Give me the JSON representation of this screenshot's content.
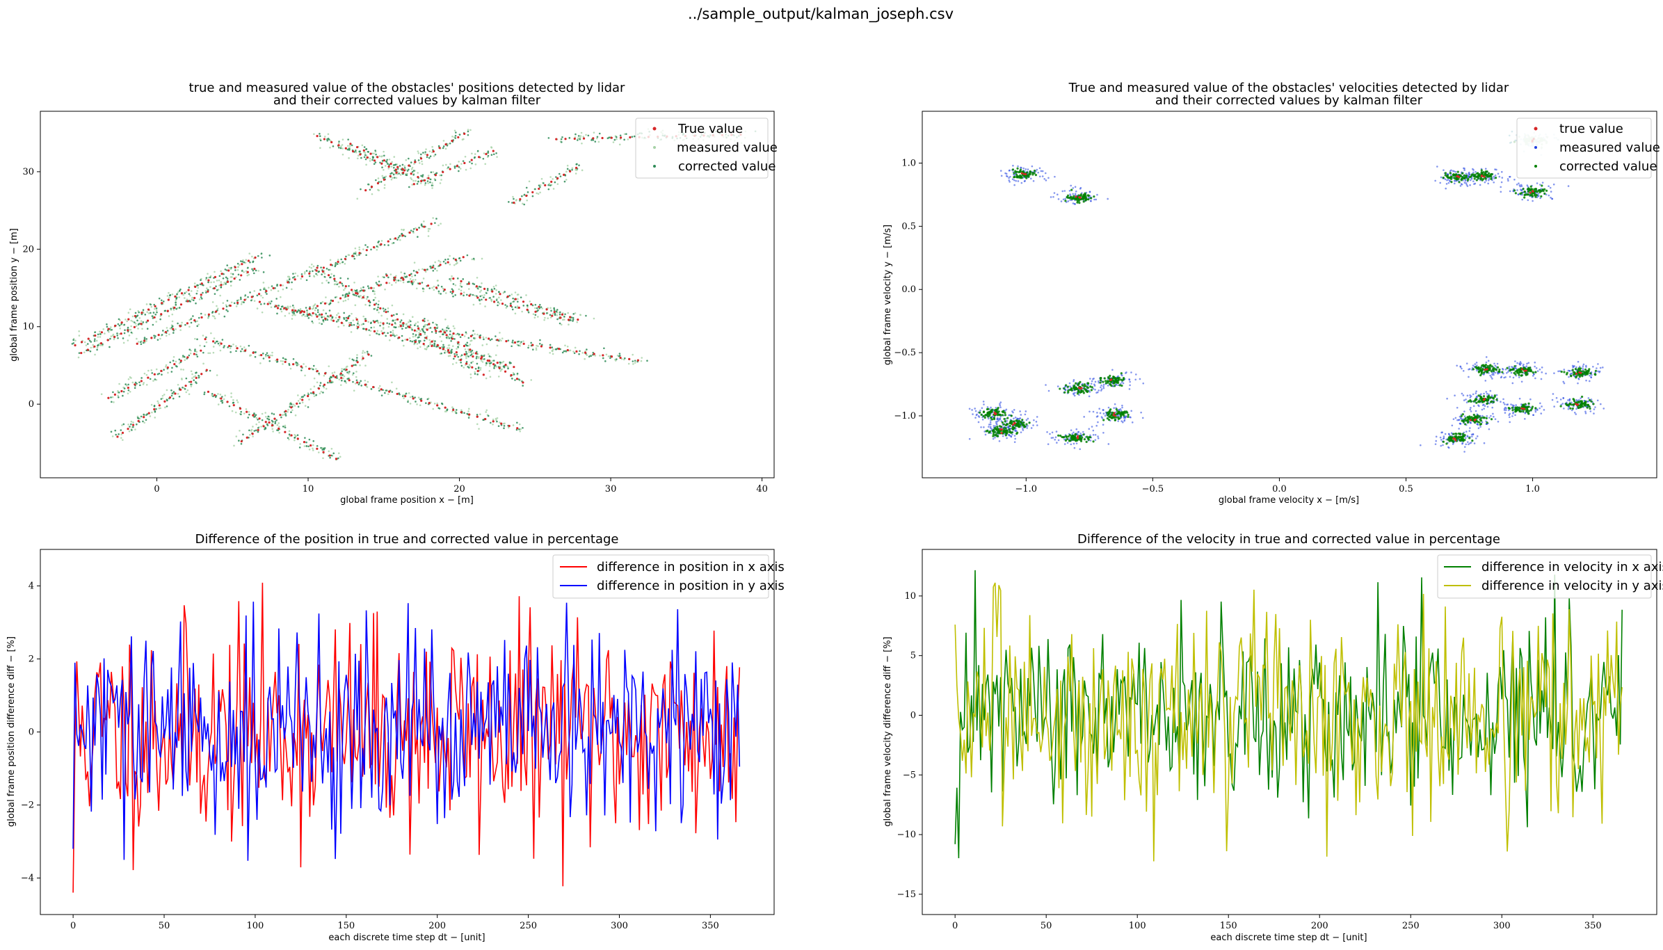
{
  "suptitle": "../sample_output/kalman_joseph.csv",
  "chart_data": [
    {
      "type": "scatter",
      "title": [
        "true and measured value of the obstacles' positions detected by lidar",
        "and their corrected values by kalman filter"
      ],
      "xlabel": "global frame position x − [m]",
      "ylabel": "global frame position y − [m]",
      "xlim": [
        -7.7,
        40.8
      ],
      "ylim": [
        -9.5,
        37.8
      ],
      "xticks": [
        0,
        10,
        20,
        30,
        40
      ],
      "yticks": [
        0,
        10,
        20,
        30
      ],
      "legend_position": "top-right",
      "series": [
        {
          "name": "True value",
          "color": "#d62728"
        },
        {
          "name": "measured value",
          "color": "#a6d2a6"
        },
        {
          "name": "corrected value",
          "color": "#2e8b57"
        }
      ],
      "trajectories": [
        [
          [
            -5.4,
            7.6
          ],
          [
            6.8,
            19.2
          ]
        ],
        [
          [
            -5.0,
            6.6
          ],
          [
            6.6,
            17.6
          ]
        ],
        [
          [
            -1.3,
            7.8
          ],
          [
            18.3,
            23.4
          ]
        ],
        [
          [
            -3.2,
            0.8
          ],
          [
            3.2,
            7.2
          ]
        ],
        [
          [
            -2.6,
            -4.2
          ],
          [
            3.3,
            4.4
          ]
        ],
        [
          [
            3.2,
            8.4
          ],
          [
            24.0,
            -3.2
          ]
        ],
        [
          [
            3.4,
            1.6
          ],
          [
            12.0,
            -7.2
          ]
        ],
        [
          [
            5.6,
            -4.8
          ],
          [
            14.0,
            6.4
          ]
        ],
        [
          [
            6.8,
            13.2
          ],
          [
            23.6,
            4.8
          ]
        ],
        [
          [
            8.0,
            12.4
          ],
          [
            32.0,
            5.6
          ]
        ],
        [
          [
            9.6,
            12.0
          ],
          [
            20.6,
            19.2
          ]
        ],
        [
          [
            10.6,
            17.6
          ],
          [
            21.6,
            3.8
          ]
        ],
        [
          [
            10.6,
            34.6
          ],
          [
            16.6,
            29.6
          ]
        ],
        [
          [
            12.8,
            33.6
          ],
          [
            18.0,
            28.6
          ]
        ],
        [
          [
            13.8,
            27.6
          ],
          [
            20.6,
            35.2
          ]
        ],
        [
          [
            17.0,
            28.4
          ],
          [
            22.4,
            32.8
          ]
        ],
        [
          [
            17.6,
            10.8
          ],
          [
            24.2,
            2.8
          ]
        ],
        [
          [
            19.6,
            16.2
          ],
          [
            28.0,
            10.8
          ]
        ],
        [
          [
            23.6,
            26.0
          ],
          [
            28.0,
            30.8
          ]
        ],
        [
          [
            26.4,
            34.2
          ],
          [
            39.0,
            34.8
          ]
        ],
        [
          [
            15.2,
            16.6
          ],
          [
            27.4,
            10.8
          ]
        ]
      ]
    },
    {
      "type": "scatter",
      "title": [
        "True and measured value of the obstacles' velocities detected by lidar",
        "and their corrected values by kalman filter"
      ],
      "xlabel": "global frame velocity x − [m/s]",
      "ylabel": "global frame velocity y − [m/s]",
      "xlim": [
        -1.41,
        1.49
      ],
      "ylim": [
        -1.49,
        1.41
      ],
      "xticks": [
        -1.0,
        -0.5,
        0.0,
        0.5,
        1.0
      ],
      "yticks": [
        -1.0,
        -0.5,
        0.0,
        0.5,
        1.0
      ],
      "legend_position": "top-right",
      "series": [
        {
          "name": "true value",
          "color": "#d62728"
        },
        {
          "name": "measured value",
          "color": "#1f3fe0"
        },
        {
          "name": "corrected value",
          "color": "#008000"
        }
      ],
      "clusters": [
        [
          -1.01,
          0.91
        ],
        [
          -0.79,
          0.73
        ],
        [
          0.7,
          0.89
        ],
        [
          0.8,
          0.9
        ],
        [
          1.0,
          1.18
        ],
        [
          1.0,
          0.77
        ],
        [
          -1.12,
          -0.98
        ],
        [
          -1.1,
          -1.12
        ],
        [
          -1.05,
          -1.06
        ],
        [
          -0.79,
          -0.78
        ],
        [
          -0.66,
          -0.72
        ],
        [
          -0.65,
          -0.99
        ],
        [
          -0.8,
          -1.17
        ],
        [
          0.82,
          -0.63
        ],
        [
          0.96,
          -0.64
        ],
        [
          1.19,
          -0.66
        ],
        [
          0.81,
          -0.87
        ],
        [
          0.96,
          -0.94
        ],
        [
          1.18,
          -0.91
        ],
        [
          0.77,
          -1.03
        ],
        [
          0.7,
          -1.18
        ]
      ]
    },
    {
      "type": "line",
      "title": "Difference of the position in true and corrected value in percentage",
      "xlabel": "each discrete time step dt − [unit]",
      "ylabel": "global frame position difference diff − [%]",
      "xlim": [
        -18,
        385
      ],
      "ylim": [
        -5.0,
        5.0
      ],
      "xticks": [
        0,
        50,
        100,
        150,
        200,
        250,
        300,
        350
      ],
      "yticks": [
        -4,
        -2,
        0,
        2,
        4
      ],
      "legend_position": "top-right",
      "n_points": 367,
      "series": [
        {
          "name": "difference in position in x axis",
          "color": "#ff0000",
          "sd": 1.5,
          "seed": 11,
          "first": -4.4
        },
        {
          "name": "difference in position in y axis",
          "color": "#0000ff",
          "sd": 1.35,
          "seed": 29,
          "first": -3.2
        }
      ]
    },
    {
      "type": "line",
      "title": "Difference of the velocity in true and corrected value in percentage",
      "xlabel": "each discrete time step dt − [unit]",
      "ylabel": "global frame velocity difference diff − [%]",
      "xlim": [
        -18,
        385
      ],
      "ylim": [
        -16.7,
        13.9
      ],
      "xticks": [
        0,
        50,
        100,
        150,
        200,
        250,
        300,
        350
      ],
      "yticks": [
        -15,
        -10,
        -5,
        0,
        5,
        10
      ],
      "legend_position": "top-right",
      "n_points": 367,
      "series": [
        {
          "name": "difference in velocity in x axis",
          "color": "#008000",
          "sd": 3.8,
          "seed": 47,
          "first": -10.8
        },
        {
          "name": "difference in velocity in y axis",
          "color": "#bfbf00",
          "sd": 4.4,
          "seed": 83,
          "first": 7.6
        }
      ]
    }
  ]
}
